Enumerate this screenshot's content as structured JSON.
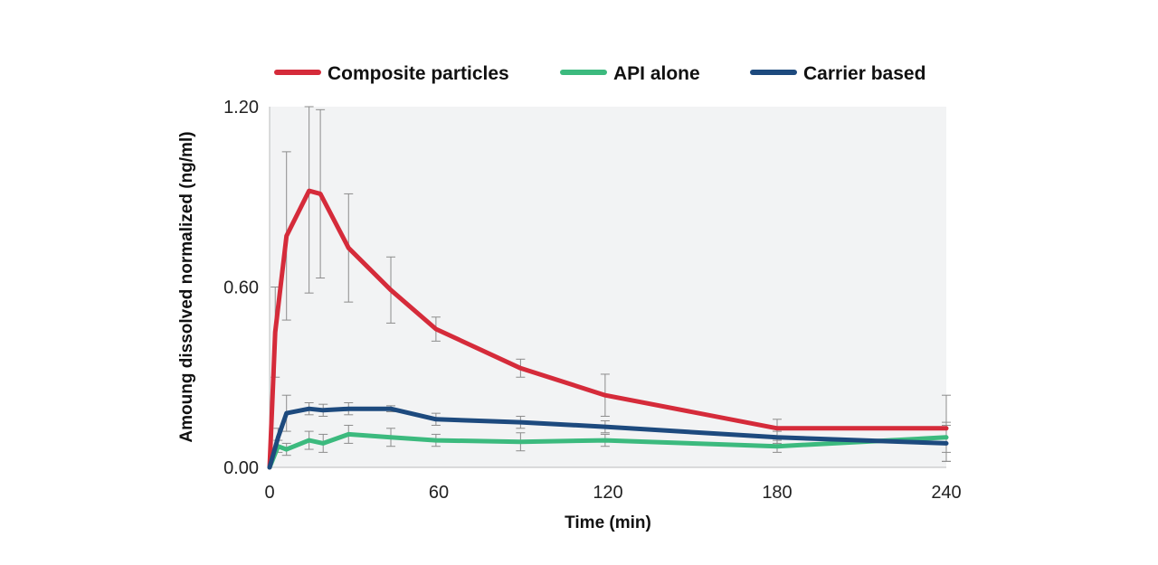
{
  "chart_data": {
    "type": "line",
    "title": "",
    "xlabel": "Time (min)",
    "ylabel": "Amoung dissolved normalized (ng/ml)",
    "xlim": [
      0,
      240
    ],
    "ylim": [
      0,
      1.2
    ],
    "xticks": [
      0,
      60,
      120,
      180,
      240
    ],
    "yticks": [
      0.0,
      0.6,
      1.2
    ],
    "xtick_labels": [
      "0",
      "60",
      "120",
      "180",
      "240"
    ],
    "ytick_labels": [
      "0.00",
      "0.60",
      "1.20"
    ],
    "legend_position": "top",
    "grid": false,
    "plot_background": "#f2f3f4",
    "error_bar_color": "#8c8c8c",
    "series": [
      {
        "name": "Composite particles",
        "color": "#d52b3a",
        "x": [
          0,
          2,
          6,
          14,
          18,
          28,
          43,
          59,
          89,
          119,
          180,
          240
        ],
        "y": [
          0.0,
          0.45,
          0.77,
          0.92,
          0.91,
          0.73,
          0.59,
          0.46,
          0.33,
          0.24,
          0.13,
          0.13
        ],
        "err": [
          0.0,
          0.15,
          0.28,
          0.34,
          0.28,
          0.18,
          0.11,
          0.04,
          0.03,
          0.07,
          0.03,
          0.11
        ]
      },
      {
        "name": "API alone",
        "color": "#3cba7e",
        "x": [
          0,
          3,
          6,
          14,
          19,
          28,
          43,
          59,
          89,
          119,
          180,
          240
        ],
        "y": [
          0.0,
          0.07,
          0.06,
          0.09,
          0.08,
          0.11,
          0.1,
          0.09,
          0.085,
          0.09,
          0.07,
          0.1
        ],
        "err": [
          0.0,
          0.02,
          0.02,
          0.03,
          0.03,
          0.03,
          0.03,
          0.02,
          0.03,
          0.02,
          0.02,
          0.05
        ]
      },
      {
        "name": "Carrier based",
        "color": "#1d4a7e",
        "x": [
          0,
          3,
          6,
          14,
          19,
          28,
          43,
          59,
          89,
          119,
          180,
          240
        ],
        "y": [
          0.0,
          0.1,
          0.18,
          0.195,
          0.19,
          0.195,
          0.195,
          0.16,
          0.15,
          0.135,
          0.1,
          0.08
        ],
        "err": [
          0.0,
          0.03,
          0.06,
          0.02,
          0.02,
          0.02,
          0.01,
          0.02,
          0.02,
          0.02,
          0.02,
          0.06
        ]
      }
    ]
  }
}
